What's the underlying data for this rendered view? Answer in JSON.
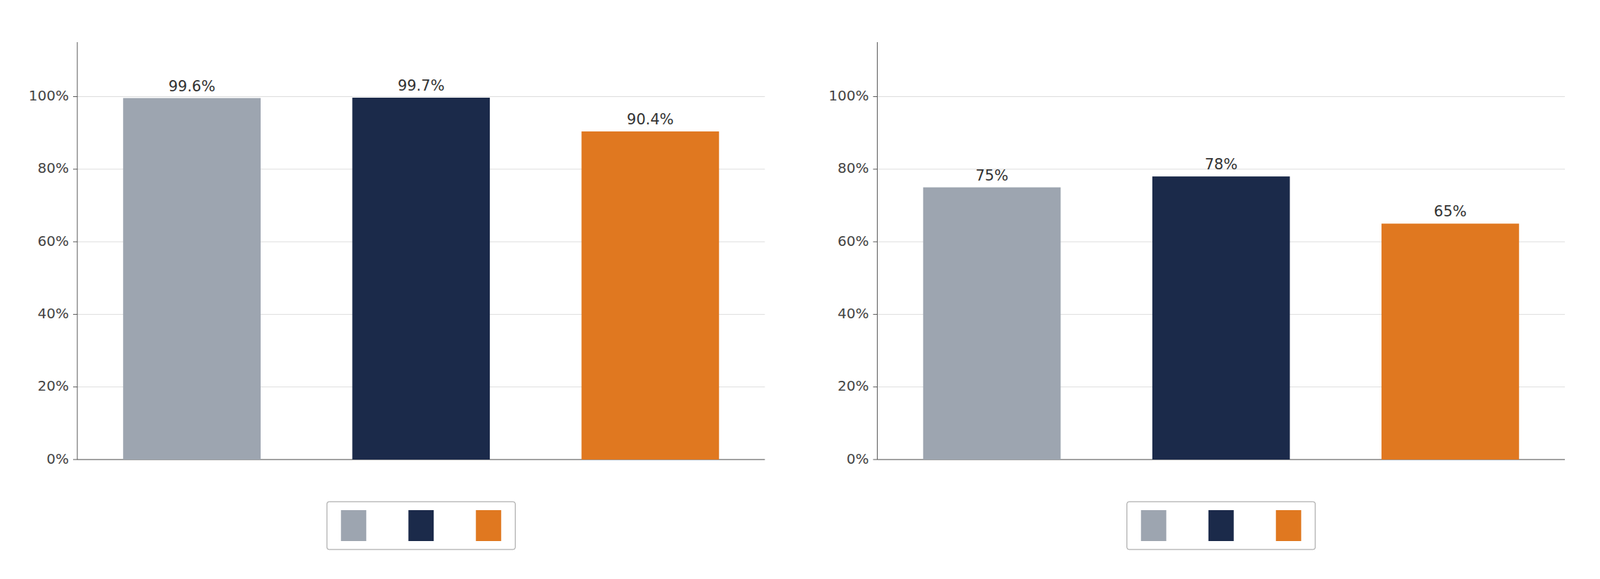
{
  "chart_data": [
    {
      "type": "bar",
      "categories": [
        null,
        null,
        null
      ],
      "values": [
        99.6,
        99.7,
        90.4
      ],
      "value_labels": [
        "99.6%",
        "99.7%",
        "90.4%"
      ],
      "colors": [
        "#9da5b0",
        "#1b2a4a",
        "#e07820"
      ],
      "ylim": [
        0,
        115
      ],
      "yticks": [
        {
          "value": 0,
          "label": "0%"
        },
        {
          "value": 20,
          "label": "20%"
        },
        {
          "value": 40,
          "label": "40%"
        },
        {
          "value": 60,
          "label": "60%"
        },
        {
          "value": 80,
          "label": "80%"
        },
        {
          "value": 100,
          "label": "100%"
        }
      ],
      "grid": true,
      "data_labels": true,
      "legend": "bottom"
    },
    {
      "type": "bar",
      "categories": [
        null,
        null,
        null
      ],
      "values": [
        75,
        78,
        65
      ],
      "value_labels": [
        "75%",
        "78%",
        "65%"
      ],
      "colors": [
        "#9da5b0",
        "#1b2a4a",
        "#e07820"
      ],
      "ylim": [
        0,
        115
      ],
      "yticks": [
        {
          "value": 0,
          "label": "0%"
        },
        {
          "value": 20,
          "label": "20%"
        },
        {
          "value": 40,
          "label": "40%"
        },
        {
          "value": 60,
          "label": "60%"
        },
        {
          "value": 80,
          "label": "80%"
        },
        {
          "value": 100,
          "label": "100%"
        }
      ],
      "grid": true,
      "data_labels": true,
      "legend": "bottom"
    }
  ]
}
